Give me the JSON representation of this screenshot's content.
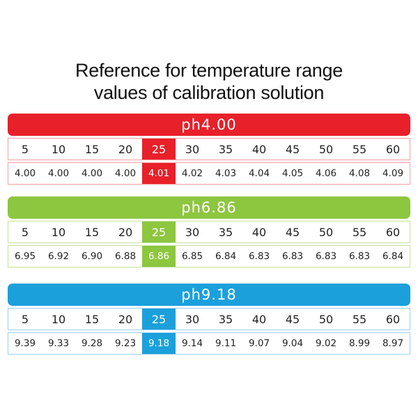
{
  "title": [
    "Reference for temperature range",
    "values of calibration solution"
  ],
  "tables": [
    {
      "header": "ph4.00",
      "color": "#e8202a",
      "border": "#f2a0a4",
      "temperatures": [
        5,
        10,
        15,
        20,
        25,
        30,
        35,
        40,
        45,
        50,
        55,
        60
      ],
      "values": [
        "4.00",
        "4.00",
        "4.00",
        "4.00",
        "4.01",
        "4.02",
        "4.03",
        "4.04",
        "4.05",
        "4.06",
        "4.08",
        "4.09"
      ]
    },
    {
      "header": "ph6.86",
      "color": "#8dc63f",
      "border": "#c6e29c",
      "temperatures": [
        5,
        10,
        15,
        20,
        25,
        30,
        35,
        40,
        45,
        50,
        55,
        60
      ],
      "values": [
        "6.95",
        "6.92",
        "6.90",
        "6.88",
        "6.86",
        "6.85",
        "6.84",
        "6.83",
        "6.83",
        "6.83",
        "6.83",
        "6.84"
      ]
    },
    {
      "header": "ph9.18",
      "color": "#1ba0dc",
      "border": "#9ccfee",
      "temperatures": [
        5,
        10,
        15,
        20,
        25,
        30,
        35,
        40,
        45,
        50,
        55,
        60
      ],
      "values": [
        "9.39",
        "9.33",
        "9.28",
        "9.23",
        "9.18",
        "9.14",
        "9.11",
        "9.07",
        "9.04",
        "9.02",
        "8.99",
        "8.97"
      ]
    }
  ]
}
